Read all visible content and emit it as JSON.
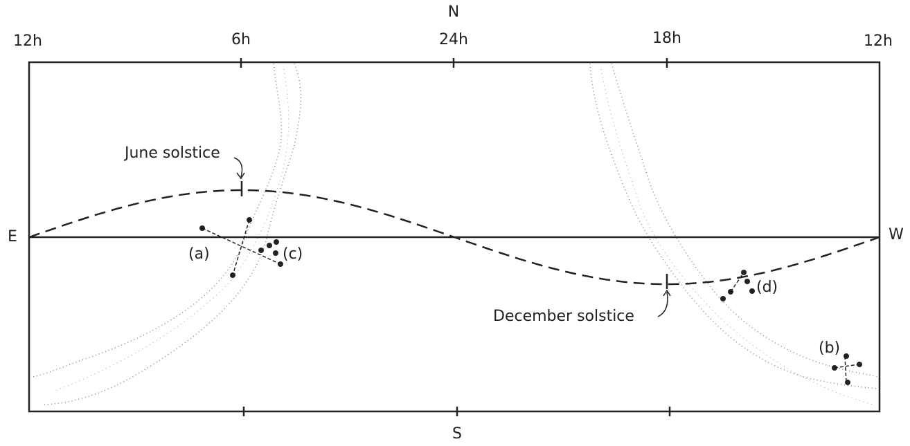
{
  "compass": {
    "north": "N",
    "south": "S",
    "east": "E",
    "west": "W"
  },
  "hour_labels": [
    "12h",
    "6h",
    "24h",
    "18h",
    "12h"
  ],
  "annotations": {
    "june": "June solstice",
    "december": "December solstice"
  },
  "groups": [
    "(a)",
    "(b)",
    "(c)",
    "(d)"
  ]
}
